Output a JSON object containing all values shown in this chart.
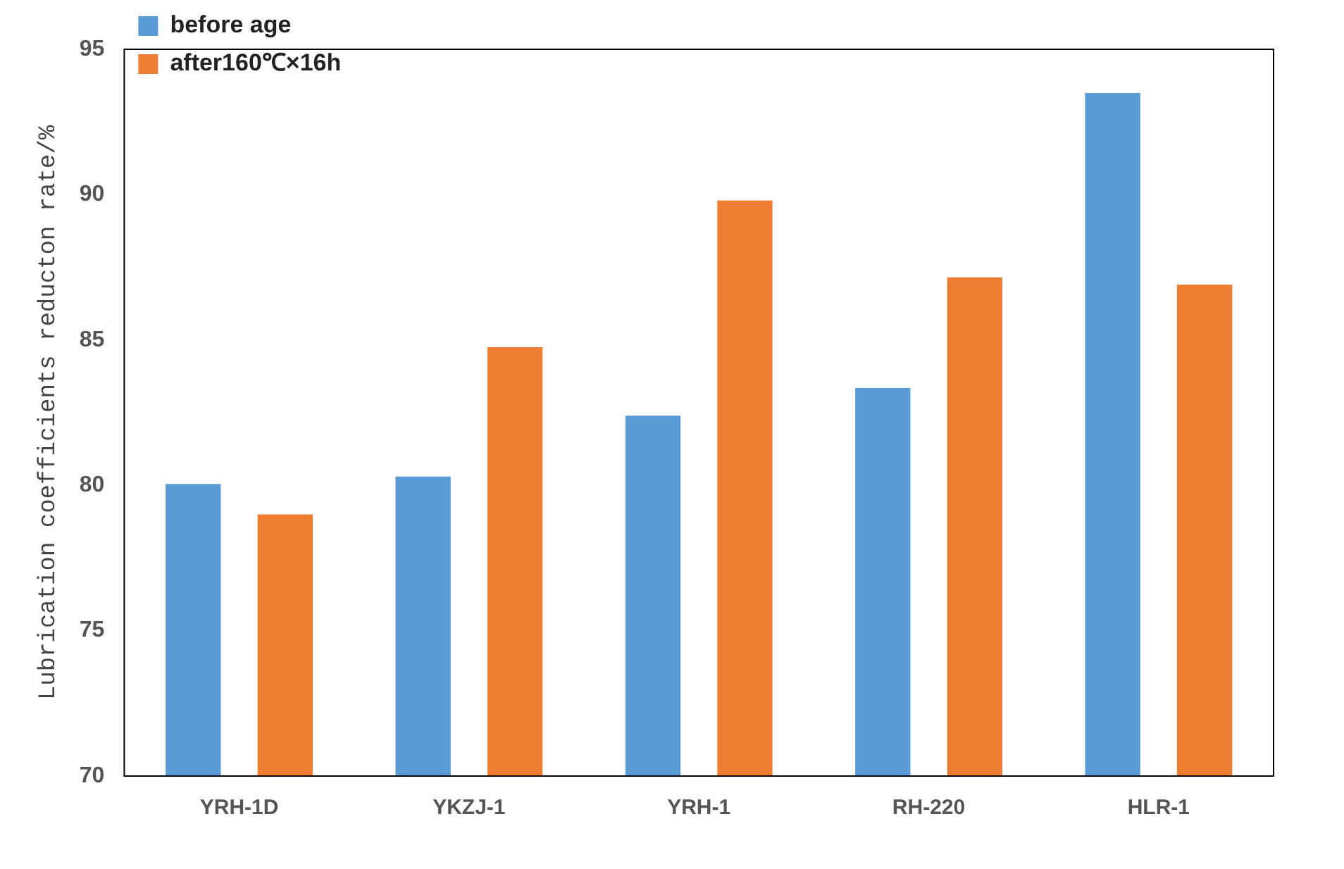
{
  "chart_data": {
    "type": "bar",
    "ylabel": "Lubrication coefficients reducton rate/%",
    "categories": [
      "YRH-1D",
      "YKZJ-1",
      "YRH-1",
      "RH-220",
      "HLR-1"
    ],
    "series": [
      {
        "name": "before age",
        "color": "#5b9bd5",
        "values": [
          80.05,
          80.3,
          82.4,
          83.35,
          93.5
        ]
      },
      {
        "name": "after160℃×16h",
        "color": "#ed7d31",
        "values": [
          79.0,
          84.75,
          89.8,
          87.15,
          86.9
        ]
      }
    ],
    "ylim": [
      70,
      95
    ],
    "yticks": [
      70,
      75,
      80,
      85,
      90,
      95
    ],
    "grid": false,
    "legend": "top left"
  }
}
